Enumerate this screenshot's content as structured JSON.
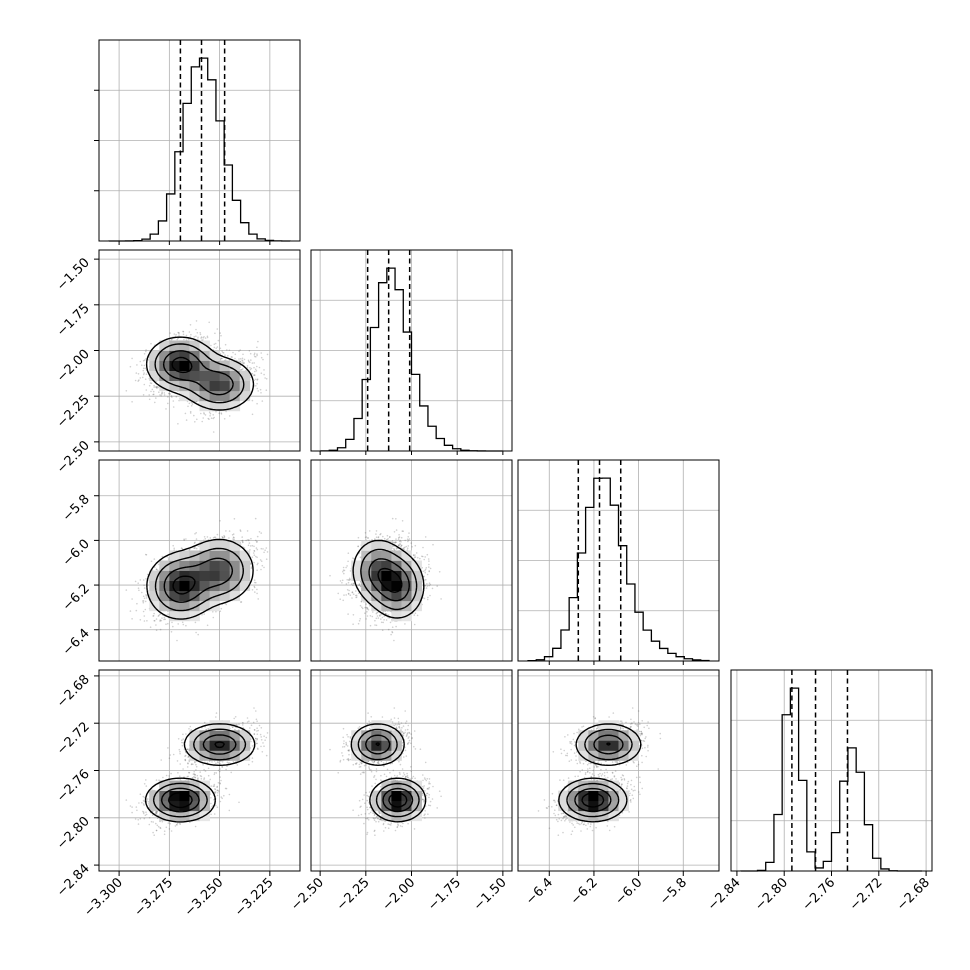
{
  "chart_data": {
    "type": "corner",
    "grid": true,
    "parameters": [
      {
        "id": 0,
        "range": [
          -3.31,
          -3.21
        ],
        "ticks": [
          -3.3,
          -3.275,
          -3.25,
          -3.225
        ],
        "tick_labels": [
          "−3.300",
          "−3.275",
          "−3.250",
          "−3.225"
        ],
        "median": -3.259,
        "quantiles": [
          -3.2695,
          -3.259,
          -3.2475
        ],
        "hist_sigma": 0.0098
      },
      {
        "id": 1,
        "range": [
          -2.55,
          -1.45
        ],
        "ticks": [
          -2.5,
          -2.25,
          -2.0,
          -1.75,
          -1.5
        ],
        "tick_labels": [
          "−2.50",
          "−2.25",
          "−2.00",
          "−1.75",
          "−1.50"
        ],
        "median": -2.125,
        "quantiles": [
          -2.24,
          -2.125,
          -2.01
        ],
        "hist_sigma": 0.115
      },
      {
        "id": 2,
        "range": [
          -6.54,
          -5.64
        ],
        "ticks": [
          -6.4,
          -6.2,
          -6.0,
          -5.8
        ],
        "tick_labels": [
          "−6.4",
          "−6.2",
          "−6.0",
          "−5.8"
        ],
        "median": -6.175,
        "quantiles": [
          -6.27,
          -6.175,
          -6.08
        ],
        "hist_sigma": 0.095
      },
      {
        "id": 3,
        "range": [
          -2.845,
          -2.675
        ],
        "ticks": [
          -2.84,
          -2.8,
          -2.76,
          -2.72,
          -2.68
        ],
        "tick_labels": [
          "−2.84",
          "−2.80",
          "−2.76",
          "−2.72",
          "−2.68"
        ],
        "median": -2.7735,
        "quantiles": [
          -2.7935,
          -2.7735,
          -2.7465
        ],
        "hist_sigma": 0.011
      }
    ],
    "hist_peaks": [
      {
        "param": 0,
        "modes": [
          {
            "mu": -3.262,
            "sigma": 0.0085,
            "w": 0.55
          },
          {
            "mu": -3.254,
            "sigma": 0.009,
            "w": 0.45
          }
        ]
      },
      {
        "param": 1,
        "modes": [
          {
            "mu": -2.13,
            "sigma": 0.09,
            "w": 0.75
          },
          {
            "mu": -2.02,
            "sigma": 0.11,
            "w": 0.25
          }
        ]
      },
      {
        "param": 2,
        "modes": [
          {
            "mu": -6.17,
            "sigma": 0.085,
            "w": 0.8
          },
          {
            "mu": -6.05,
            "sigma": 0.12,
            "w": 0.2
          }
        ]
      },
      {
        "param": 3,
        "modes": [
          {
            "mu": -2.7935,
            "sigma": 0.0075,
            "w": 0.55
          },
          {
            "mu": -2.742,
            "sigma": 0.0095,
            "w": 0.45
          }
        ]
      }
    ],
    "density_modes": [
      {
        "weight": 0.55,
        "mean": [
          -3.2695,
          -2.075,
          -6.205,
          -2.785
        ],
        "sd": [
          0.0085,
          0.075,
          0.075,
          0.009
        ]
      },
      {
        "weight": 0.45,
        "mean": [
          -3.25,
          -2.185,
          -6.135,
          -2.738
        ],
        "sd": [
          0.009,
          0.075,
          0.075,
          0.009
        ]
      }
    ],
    "contour_levels": [
      "0.5-sigma",
      "1-sigma",
      "1.5-sigma",
      "2-sigma"
    ]
  }
}
